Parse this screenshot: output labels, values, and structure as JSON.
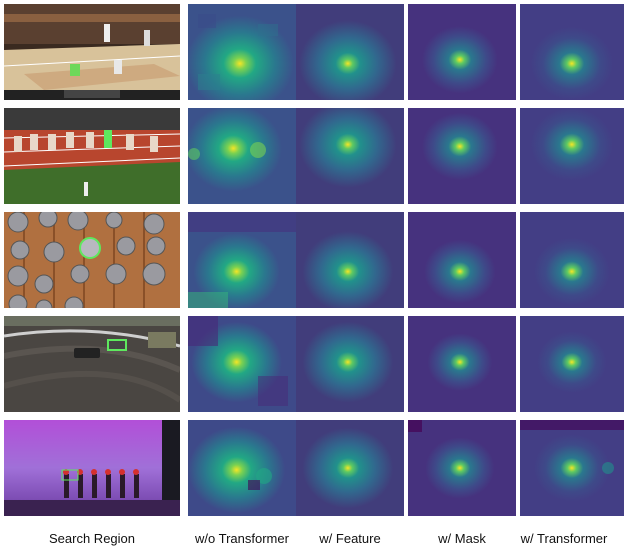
{
  "column_labels": [
    "Search Region",
    "w/o Transformer",
    "w/ Feature",
    "w/ Mask",
    "w/ Transformer"
  ],
  "rows": [
    {
      "scene": "basketball-court"
    },
    {
      "scene": "running-track"
    },
    {
      "scene": "coins-on-wood"
    },
    {
      "scene": "car-on-dirt-track"
    },
    {
      "scene": "dancers-on-stage"
    }
  ],
  "heatmap_colors": {
    "background_dark": "#3b2d7a",
    "mid": "#2f6f8e",
    "teal": "#21a58a",
    "peak": "#f5e626"
  },
  "tracked_box_color": "#5ee85e"
}
